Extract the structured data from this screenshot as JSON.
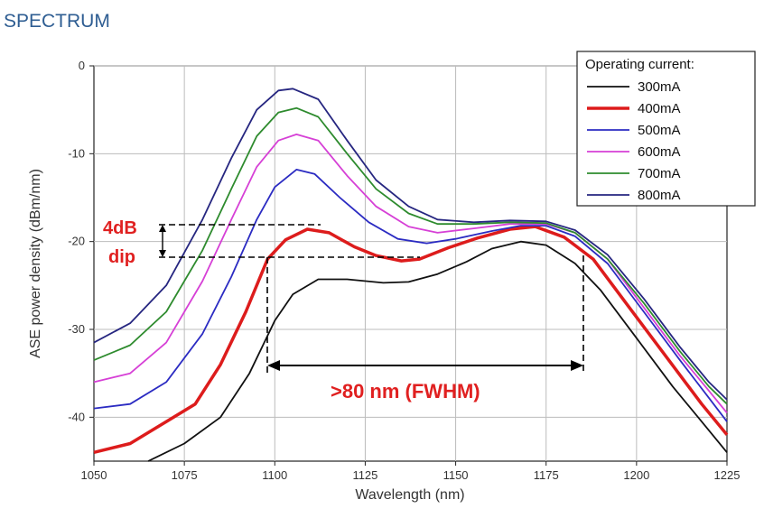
{
  "header": {
    "title": "SPECTRUM"
  },
  "chart_data": {
    "type": "line",
    "title": "",
    "xlabel": "Wavelength (nm)",
    "ylabel": "ASE power density (dBm/nm)",
    "xlim": [
      1050,
      1225
    ],
    "ylim": [
      -45,
      0
    ],
    "x_ticks": [
      "1050",
      "1075",
      "1100",
      "1125",
      "1150",
      "1175",
      "1200",
      "1225"
    ],
    "y_ticks": [
      "0",
      "-10",
      "-20",
      "-30",
      "-40"
    ],
    "grid": true,
    "legend": {
      "title": "Operating current:",
      "placement": "top-right"
    },
    "series": [
      {
        "name": "300mA",
        "color": "#111111",
        "points": [
          [
            1065,
            -45
          ],
          [
            1075,
            -43
          ],
          [
            1085,
            -40
          ],
          [
            1093,
            -35
          ],
          [
            1100,
            -29
          ],
          [
            1105,
            -26
          ],
          [
            1112,
            -24.3
          ],
          [
            1120,
            -24.3
          ],
          [
            1130,
            -24.7
          ],
          [
            1137,
            -24.6
          ],
          [
            1145,
            -23.7
          ],
          [
            1153,
            -22.3
          ],
          [
            1160,
            -20.8
          ],
          [
            1168,
            -20
          ],
          [
            1175,
            -20.4
          ],
          [
            1183,
            -22.5
          ],
          [
            1190,
            -25.5
          ],
          [
            1200,
            -31
          ],
          [
            1210,
            -36.5
          ],
          [
            1218,
            -40.5
          ],
          [
            1225,
            -44
          ]
        ]
      },
      {
        "name": "400mA",
        "color": "#dd1c1c",
        "points": [
          [
            1050,
            -44
          ],
          [
            1060,
            -43
          ],
          [
            1070,
            -40.5
          ],
          [
            1078,
            -38.5
          ],
          [
            1085,
            -34
          ],
          [
            1092,
            -28
          ],
          [
            1098,
            -22
          ],
          [
            1103,
            -19.8
          ],
          [
            1109,
            -18.6
          ],
          [
            1115,
            -19
          ],
          [
            1122,
            -20.6
          ],
          [
            1128,
            -21.6
          ],
          [
            1135,
            -22.2
          ],
          [
            1140,
            -22
          ],
          [
            1148,
            -20.7
          ],
          [
            1156,
            -19.6
          ],
          [
            1165,
            -18.6
          ],
          [
            1172,
            -18.3
          ],
          [
            1180,
            -19.5
          ],
          [
            1188,
            -22
          ],
          [
            1198,
            -27.5
          ],
          [
            1208,
            -33
          ],
          [
            1218,
            -38.5
          ],
          [
            1225,
            -42
          ]
        ]
      },
      {
        "name": "500mA",
        "color": "#2b2bc2",
        "points": [
          [
            1050,
            -39
          ],
          [
            1060,
            -38.5
          ],
          [
            1070,
            -36
          ],
          [
            1080,
            -30.5
          ],
          [
            1088,
            -24
          ],
          [
            1095,
            -17.5
          ],
          [
            1100,
            -13.8
          ],
          [
            1106,
            -11.8
          ],
          [
            1111,
            -12.3
          ],
          [
            1118,
            -15
          ],
          [
            1126,
            -17.8
          ],
          [
            1134,
            -19.7
          ],
          [
            1142,
            -20.2
          ],
          [
            1150,
            -19.7
          ],
          [
            1160,
            -18.8
          ],
          [
            1168,
            -18.2
          ],
          [
            1175,
            -18.2
          ],
          [
            1183,
            -19.4
          ],
          [
            1192,
            -22.5
          ],
          [
            1202,
            -28
          ],
          [
            1212,
            -33.5
          ],
          [
            1220,
            -37.8
          ],
          [
            1225,
            -40.5
          ]
        ]
      },
      {
        "name": "600mA",
        "color": "#d640d6",
        "points": [
          [
            1050,
            -36
          ],
          [
            1060,
            -35
          ],
          [
            1070,
            -31.5
          ],
          [
            1080,
            -24.5
          ],
          [
            1088,
            -17.5
          ],
          [
            1095,
            -11.5
          ],
          [
            1101,
            -8.5
          ],
          [
            1106,
            -7.8
          ],
          [
            1112,
            -8.5
          ],
          [
            1120,
            -12.5
          ],
          [
            1128,
            -16
          ],
          [
            1137,
            -18.3
          ],
          [
            1145,
            -19
          ],
          [
            1155,
            -18.5
          ],
          [
            1165,
            -18
          ],
          [
            1175,
            -18
          ],
          [
            1183,
            -19
          ],
          [
            1192,
            -22
          ],
          [
            1202,
            -27.5
          ],
          [
            1212,
            -33
          ],
          [
            1220,
            -37
          ],
          [
            1225,
            -39.5
          ]
        ]
      },
      {
        "name": "700mA",
        "color": "#2e8b2e",
        "points": [
          [
            1050,
            -33.5
          ],
          [
            1060,
            -31.8
          ],
          [
            1070,
            -28
          ],
          [
            1080,
            -21
          ],
          [
            1088,
            -14
          ],
          [
            1095,
            -8
          ],
          [
            1101,
            -5.3
          ],
          [
            1106,
            -4.8
          ],
          [
            1112,
            -5.8
          ],
          [
            1120,
            -10
          ],
          [
            1128,
            -14
          ],
          [
            1137,
            -16.8
          ],
          [
            1145,
            -18
          ],
          [
            1155,
            -18
          ],
          [
            1165,
            -17.8
          ],
          [
            1175,
            -17.9
          ],
          [
            1183,
            -19
          ],
          [
            1192,
            -22
          ],
          [
            1202,
            -27
          ],
          [
            1212,
            -32.5
          ],
          [
            1220,
            -36.5
          ],
          [
            1225,
            -38.5
          ]
        ]
      },
      {
        "name": "800mA",
        "color": "#262680",
        "points": [
          [
            1050,
            -31.5
          ],
          [
            1060,
            -29.3
          ],
          [
            1070,
            -25
          ],
          [
            1080,
            -17.5
          ],
          [
            1088,
            -10.5
          ],
          [
            1095,
            -5
          ],
          [
            1101,
            -2.8
          ],
          [
            1105,
            -2.6
          ],
          [
            1112,
            -3.8
          ],
          [
            1120,
            -8.5
          ],
          [
            1128,
            -13
          ],
          [
            1137,
            -16
          ],
          [
            1145,
            -17.5
          ],
          [
            1155,
            -17.8
          ],
          [
            1165,
            -17.6
          ],
          [
            1175,
            -17.7
          ],
          [
            1183,
            -18.7
          ],
          [
            1192,
            -21.5
          ],
          [
            1202,
            -26.5
          ],
          [
            1212,
            -32
          ],
          [
            1220,
            -36
          ],
          [
            1225,
            -38
          ]
        ]
      }
    ],
    "annotations": [
      {
        "text": "4dB",
        "color": "#e02020"
      },
      {
        "text": "dip",
        "color": "#e02020"
      },
      {
        "text": ">80 nm (FWHM)",
        "color": "#e02020"
      }
    ]
  }
}
